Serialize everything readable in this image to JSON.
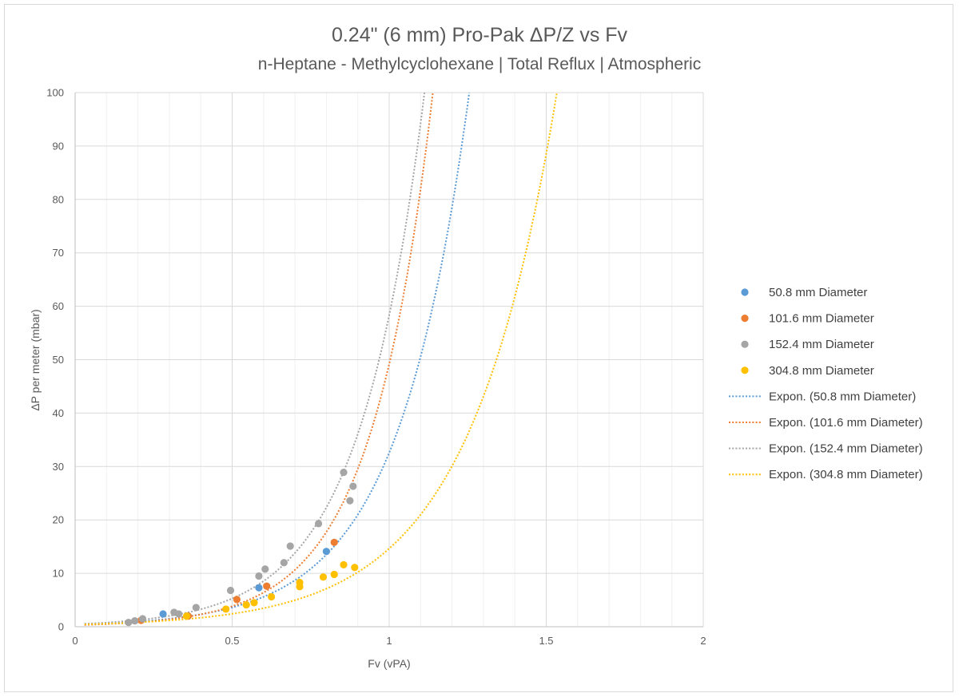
{
  "chart_data": {
    "type": "scatter",
    "title": "0.24\" (6 mm) Pro-Pak ΔP/Z vs Fv",
    "subtitle": "n-Heptane - Methylcyclohexane | Total Reflux | Atmospheric",
    "xlabel": "Fv (vPA)",
    "ylabel": "ΔP per meter (mbar)",
    "xlim": [
      0,
      2
    ],
    "ylim": [
      0,
      100
    ],
    "x_ticks": [
      "0",
      "0.5",
      "1",
      "1.5",
      "2"
    ],
    "y_ticks": [
      "0",
      "10",
      "20",
      "30",
      "40",
      "50",
      "60",
      "70",
      "80",
      "90",
      "100"
    ],
    "grid": true,
    "legend_position": "right",
    "series": [
      {
        "name": "50.8 mm Diameter",
        "color": "#5b9bd5",
        "points": [
          [
            0.28,
            2.4
          ],
          [
            0.585,
            7.3
          ],
          [
            0.8,
            14.1
          ]
        ],
        "trend": {
          "a": 0.4,
          "b": 4.4
        }
      },
      {
        "name": "101.6 mm Diameter",
        "color": "#ed7d31",
        "points": [
          [
            0.21,
            1.2
          ],
          [
            0.36,
            2.0
          ],
          [
            0.515,
            5.1
          ],
          [
            0.61,
            7.6
          ],
          [
            0.825,
            15.8
          ]
        ],
        "trend": {
          "a": 0.3,
          "b": 5.1
        }
      },
      {
        "name": "152.4 mm Diameter",
        "color": "#a5a5a5",
        "points": [
          [
            0.17,
            0.8
          ],
          [
            0.19,
            1.1
          ],
          [
            0.215,
            1.5
          ],
          [
            0.315,
            2.7
          ],
          [
            0.33,
            2.4
          ],
          [
            0.385,
            3.6
          ],
          [
            0.495,
            6.8
          ],
          [
            0.585,
            9.5
          ],
          [
            0.605,
            10.8
          ],
          [
            0.665,
            12.0
          ],
          [
            0.685,
            15.1
          ],
          [
            0.775,
            19.3
          ],
          [
            0.855,
            28.9
          ],
          [
            0.875,
            23.6
          ],
          [
            0.885,
            26.3
          ]
        ],
        "trend": {
          "a": 0.48,
          "b": 4.8
        }
      },
      {
        "name": "304.8 mm Diameter",
        "color": "#ffc000",
        "points": [
          [
            0.355,
            2.0
          ],
          [
            0.48,
            3.3
          ],
          [
            0.545,
            4.1
          ],
          [
            0.57,
            4.5
          ],
          [
            0.625,
            5.6
          ],
          [
            0.715,
            7.5
          ],
          [
            0.715,
            8.3
          ],
          [
            0.79,
            9.3
          ],
          [
            0.825,
            9.8
          ],
          [
            0.855,
            11.6
          ],
          [
            0.89,
            11.1
          ]
        ],
        "trend": {
          "a": 0.4,
          "b": 3.6
        }
      }
    ],
    "trendlines": [
      {
        "name": "Expon. (50.8 mm Diameter)",
        "color": "#5b9bd5",
        "type": "exponential"
      },
      {
        "name": "Expon. (101.6 mm Diameter)",
        "color": "#ed7d31",
        "type": "exponential"
      },
      {
        "name": "Expon. (152.4 mm Diameter)",
        "color": "#a5a5a5",
        "type": "exponential"
      },
      {
        "name": "Expon. (304.8 mm Diameter)",
        "color": "#ffc000",
        "type": "exponential"
      }
    ]
  }
}
